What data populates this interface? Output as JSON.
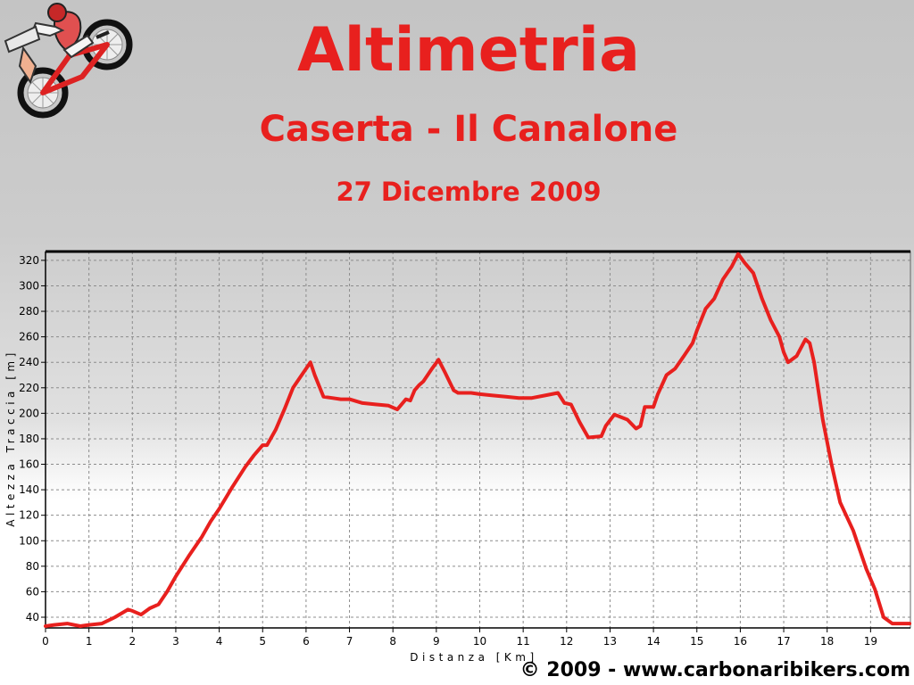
{
  "header": {
    "title": "Altimetria",
    "subtitle": "Caserta - Il Canalone",
    "date": "27 Dicembre 2009"
  },
  "footer": {
    "copyright": "© 2009 - www.carbonaribikers.com"
  },
  "colors": {
    "title": "#e8201e",
    "line": "#e8201e",
    "grid": "#8c8c8c",
    "axis": "#000000"
  },
  "chart_data": {
    "type": "line",
    "title": "",
    "xlabel": "Distanza [Km]",
    "ylabel": "Altezza Traccia [m]",
    "xlim": [
      0,
      19.9
    ],
    "ylim": [
      32,
      325
    ],
    "x_ticks": [
      0,
      1,
      2,
      3,
      4,
      5,
      6,
      7,
      8,
      9,
      10,
      11,
      12,
      13,
      14,
      15,
      16,
      17,
      18,
      19
    ],
    "y_ticks": [
      40,
      60,
      80,
      100,
      120,
      140,
      160,
      180,
      200,
      220,
      240,
      260,
      280,
      300,
      320
    ],
    "grid": true,
    "legend": "none",
    "series": [
      {
        "x": [
          0,
          0.2,
          0.5,
          0.8,
          1.0,
          1.3,
          1.6,
          1.9,
          2.0,
          2.2,
          2.4,
          2.6,
          2.8,
          3.0,
          3.3,
          3.6,
          3.8,
          4.0,
          4.3,
          4.6,
          4.8,
          5.0,
          5.1,
          5.3,
          5.5,
          5.7,
          5.9,
          6.1,
          6.2,
          6.4,
          6.6,
          6.8,
          7.0,
          7.3,
          7.6,
          7.9,
          8.1,
          8.3,
          8.4,
          8.5,
          8.6,
          8.7,
          8.9,
          9.05,
          9.2,
          9.4,
          9.5,
          9.8,
          10.0,
          10.3,
          10.6,
          10.9,
          11.2,
          11.5,
          11.8,
          11.95,
          12.1,
          12.3,
          12.5,
          12.8,
          12.9,
          13.1,
          13.4,
          13.6,
          13.7,
          13.8,
          14.0,
          14.1,
          14.3,
          14.5,
          14.7,
          14.9,
          15.0,
          15.2,
          15.4,
          15.6,
          15.8,
          15.95,
          16.1,
          16.3,
          16.5,
          16.7,
          16.9,
          17.0,
          17.1,
          17.3,
          17.5,
          17.6,
          17.7,
          17.9,
          18.1,
          18.3,
          18.6,
          18.9,
          19.1,
          19.3,
          19.5,
          19.9
        ],
        "y": [
          33,
          34,
          35,
          33,
          34,
          35,
          40,
          46,
          45,
          42,
          47,
          50,
          60,
          72,
          88,
          103,
          115,
          125,
          142,
          158,
          167,
          175,
          175,
          187,
          203,
          220,
          230,
          240,
          230,
          213,
          212,
          211,
          211,
          208,
          207,
          206,
          203,
          211,
          210,
          218,
          222,
          225,
          235,
          242,
          232,
          218,
          216,
          216,
          215,
          214,
          213,
          212,
          212,
          214,
          216,
          208,
          207,
          193,
          181,
          182,
          190,
          199,
          195,
          188,
          190,
          205,
          205,
          215,
          230,
          235,
          245,
          255,
          265,
          282,
          290,
          305,
          315,
          325,
          318,
          310,
          290,
          273,
          260,
          248,
          240,
          245,
          258,
          255,
          240,
          195,
          160,
          130,
          108,
          78,
          62,
          40,
          35,
          35
        ]
      }
    ]
  }
}
